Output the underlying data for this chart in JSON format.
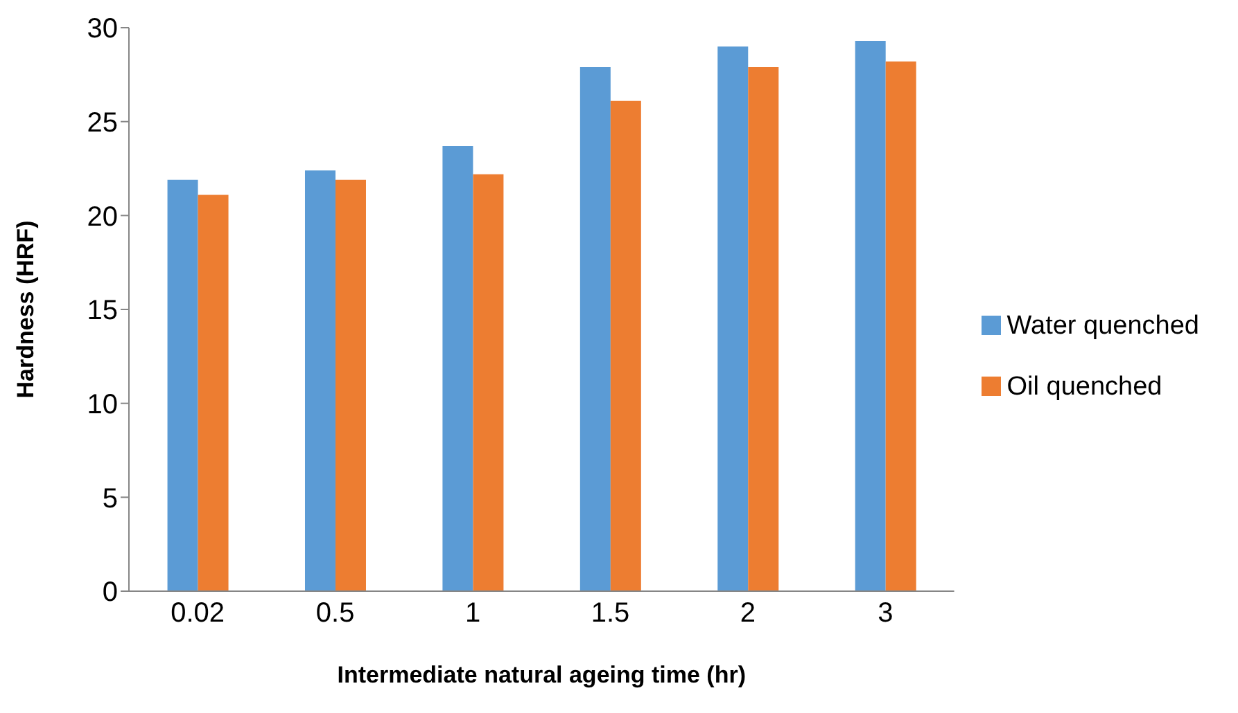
{
  "chart_data": {
    "type": "bar",
    "xlabel": "Intermediate natural  ageing time (hr)",
    "ylabel": "Hardness (HRF)",
    "categories": [
      "0.02",
      "0.5",
      "1",
      "1.5",
      "2",
      "3"
    ],
    "series": [
      {
        "name": "Water quenched",
        "color": "#5b9bd5",
        "values": [
          21.9,
          22.4,
          23.7,
          27.9,
          29.0,
          29.3
        ]
      },
      {
        "name": "Oil quenched",
        "color": "#ed7d31",
        "values": [
          21.1,
          21.9,
          22.2,
          26.1,
          27.9,
          28.2
        ]
      }
    ],
    "ylim": [
      0,
      30
    ],
    "yticks": [
      0,
      5,
      10,
      15,
      20,
      25,
      30
    ],
    "grid": false,
    "legend": "right"
  }
}
